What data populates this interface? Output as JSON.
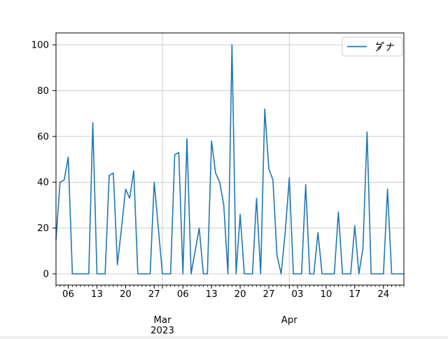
{
  "chart_data": {
    "type": "line",
    "title": "",
    "xlabel": "",
    "ylabel": "",
    "x_start": "2023-02-03",
    "x_end": "2023-04-29",
    "x_unit": "day",
    "series": [
      {
        "name": "ダナ",
        "color": "#1f77b4",
        "values": [
          15,
          40,
          41,
          51,
          0,
          0,
          0,
          0,
          0,
          66,
          0,
          0,
          0,
          43,
          44,
          4,
          20,
          37,
          33,
          45,
          0,
          0,
          0,
          0,
          40,
          20,
          0,
          0,
          0,
          52,
          53,
          0,
          59,
          0,
          10,
          20,
          0,
          0,
          58,
          44,
          40,
          30,
          0,
          100,
          0,
          26,
          0,
          0,
          0,
          33,
          0,
          72,
          46,
          41,
          8,
          0,
          18,
          42,
          0,
          0,
          0,
          39,
          0,
          0,
          18,
          0,
          0,
          0,
          0,
          27,
          0,
          0,
          0,
          21,
          0,
          11,
          62,
          0,
          0,
          0,
          0,
          37,
          0,
          0,
          0,
          0
        ]
      }
    ],
    "y_ticks": [
      0,
      20,
      40,
      60,
      80,
      100
    ],
    "ylim": [
      -5,
      105
    ],
    "x_week_ticks": [
      {
        "day_index": 3,
        "label": "06"
      },
      {
        "day_index": 10,
        "label": "13"
      },
      {
        "day_index": 17,
        "label": "20"
      },
      {
        "day_index": 24,
        "label": "27"
      },
      {
        "day_index": 31,
        "label": "06"
      },
      {
        "day_index": 38,
        "label": "13"
      },
      {
        "day_index": 45,
        "label": "20"
      },
      {
        "day_index": 52,
        "label": "27"
      },
      {
        "day_index": 59,
        "label": "03"
      },
      {
        "day_index": 66,
        "label": "10"
      },
      {
        "day_index": 73,
        "label": "17"
      },
      {
        "day_index": 80,
        "label": "24"
      }
    ],
    "x_month_ticks": [
      {
        "day_index": 26,
        "label": "Mar",
        "year": "2023"
      },
      {
        "day_index": 57,
        "label": "Apr",
        "year": ""
      }
    ],
    "minor_tick_every_days": 1,
    "grid": true,
    "grid_color": "#cccccc",
    "axis_color": "#000000",
    "legend": {
      "position": "upper right",
      "label": "ダナ",
      "border_color": "#cccccc",
      "background": "#ffffff"
    }
  }
}
